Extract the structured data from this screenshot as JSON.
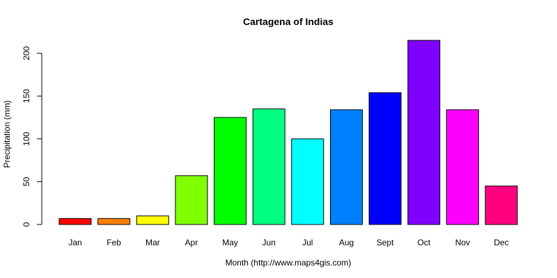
{
  "chart_data": {
    "type": "bar",
    "title": "Cartagena of Indias",
    "xlabel": "Month (http://www.maps4gis.com)",
    "ylabel": "Precipitation (mm)",
    "categories": [
      "Jan",
      "Feb",
      "Mar",
      "Apr",
      "May",
      "Jun",
      "Jul",
      "Aug",
      "Sept",
      "Oct",
      "Nov",
      "Dec"
    ],
    "values": [
      7,
      7,
      10,
      57,
      125,
      135,
      100,
      134,
      154,
      215,
      134,
      45
    ],
    "ylim": [
      0,
      215
    ],
    "yticks": [
      0,
      50,
      100,
      150,
      200
    ],
    "colors": [
      "#FF0000",
      "#FF8000",
      "#FFFF00",
      "#80FF00",
      "#00FF00",
      "#00FF80",
      "#00FFFF",
      "#0080FF",
      "#0000FF",
      "#8000FF",
      "#FF00FF",
      "#FF0080"
    ],
    "grid": false,
    "legend": "none"
  }
}
